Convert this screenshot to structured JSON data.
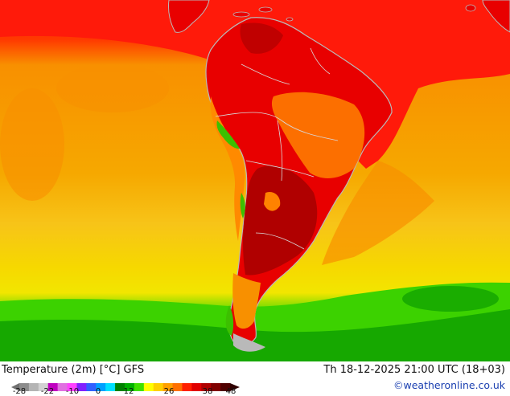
{
  "map": {
    "title": "Temperature (2m) [°C] GFS",
    "valid_time": "Th 18-12-2025 21:00 UTC (18+03)",
    "credit": "©weatheronline.co.uk",
    "colors": {
      "ocean_warm": "#f6a800",
      "ocean_mid": "#f7c418",
      "ocean_cool_yellow": "#f2e600",
      "ocean_green": "#3cd200",
      "ocean_dark_green": "#16a800",
      "tropic_red": "#ff1a0a",
      "land_red": "#e80000",
      "land_dark_red": "#b00000",
      "land_orange": "#ff8200",
      "land_green": "#3cc000",
      "coast": "#b9b9b9"
    }
  },
  "legend": {
    "ticks": [
      "-28",
      "-22",
      "-10",
      "0",
      "12",
      "26",
      "38",
      "48"
    ],
    "colors": [
      "#8c8c8c",
      "#b4b4b4",
      "#d2d2d2",
      "#c000c0",
      "#e070e0",
      "#ff40ff",
      "#8020ff",
      "#3060ff",
      "#00a0ff",
      "#00e0ff",
      "#008000",
      "#00b000",
      "#40e000",
      "#ffff00",
      "#ffd000",
      "#ffa000",
      "#ff7000",
      "#ff2000",
      "#e00000",
      "#b00000",
      "#800000",
      "#500000"
    ]
  }
}
